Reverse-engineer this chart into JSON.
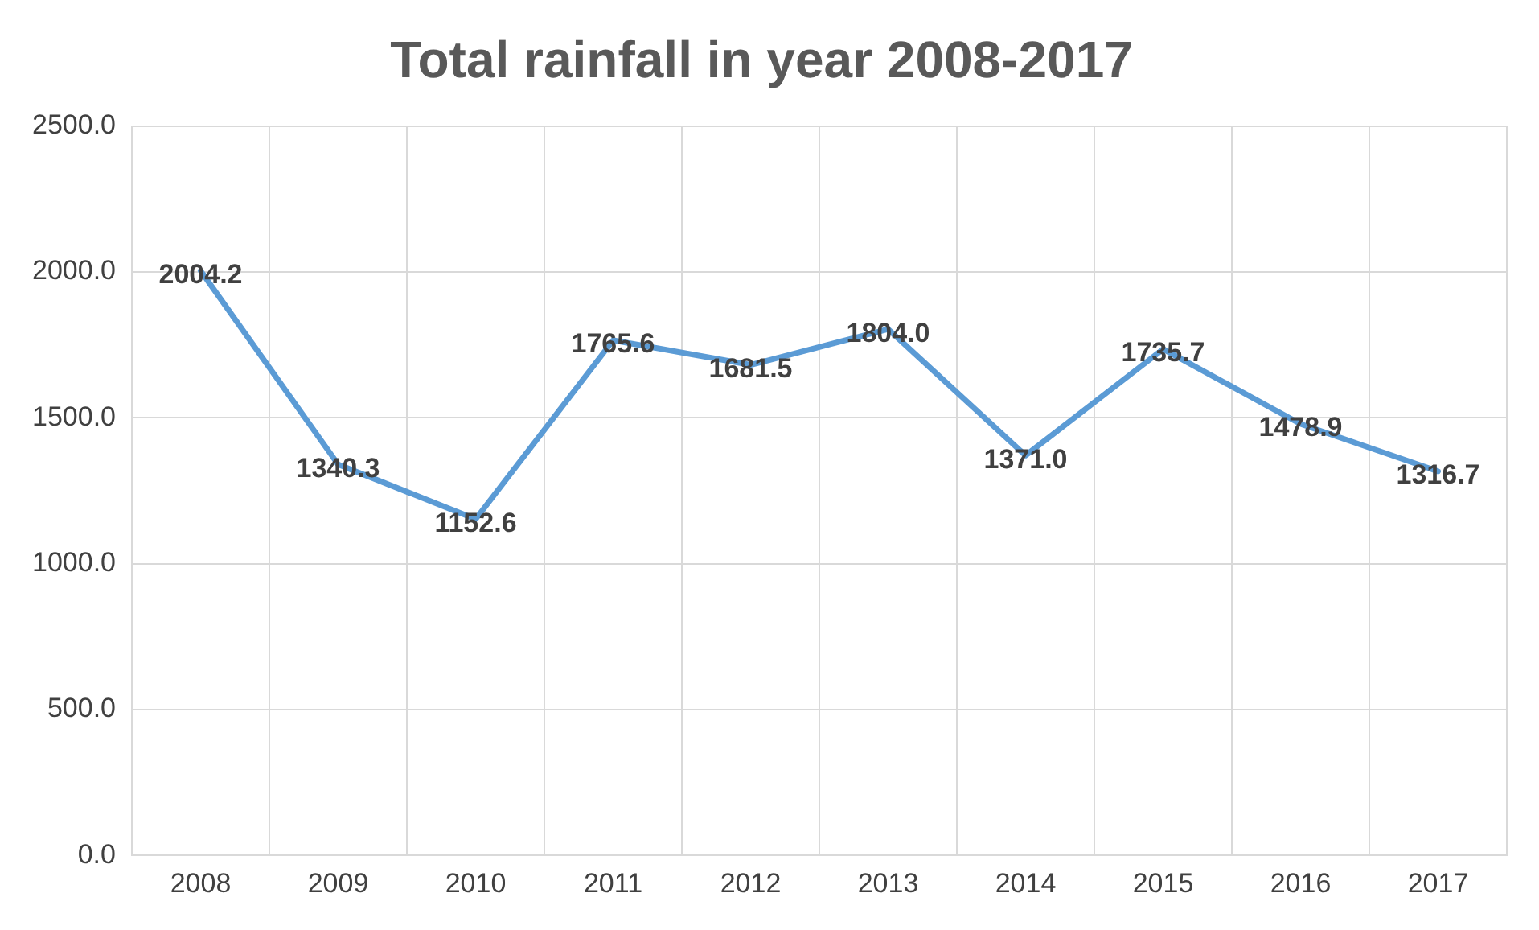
{
  "chart_data": {
    "type": "line",
    "title": "Total rainfall in year 2008-2017",
    "categories": [
      "2008",
      "2009",
      "2010",
      "2011",
      "2012",
      "2013",
      "2014",
      "2015",
      "2016",
      "2017"
    ],
    "series": [
      {
        "color": "#5b9bd5",
        "values": [
          2004.2,
          1340.3,
          1152.6,
          1765.6,
          1681.5,
          1804.0,
          1371.0,
          1735.7,
          1478.9,
          1316.7
        ],
        "value_labels": [
          "2004.2",
          "1340.3",
          "1152.6",
          "1765.6",
          "1681.5",
          "1804.0",
          "1371.0",
          "1735.7",
          "1478.9",
          "1316.7"
        ]
      }
    ],
    "ylim": [
      0,
      2500
    ],
    "yticks": [
      {
        "value": 0,
        "label": "0.0"
      },
      {
        "value": 500,
        "label": "500.0"
      },
      {
        "value": 1000,
        "label": "1000.0"
      },
      {
        "value": 1500,
        "label": "1500.0"
      },
      {
        "value": 2000,
        "label": "2000.0"
      },
      {
        "value": 2500,
        "label": "2500.0"
      }
    ],
    "grid": true,
    "legend": false,
    "marker": "none",
    "line_style": "solid"
  }
}
